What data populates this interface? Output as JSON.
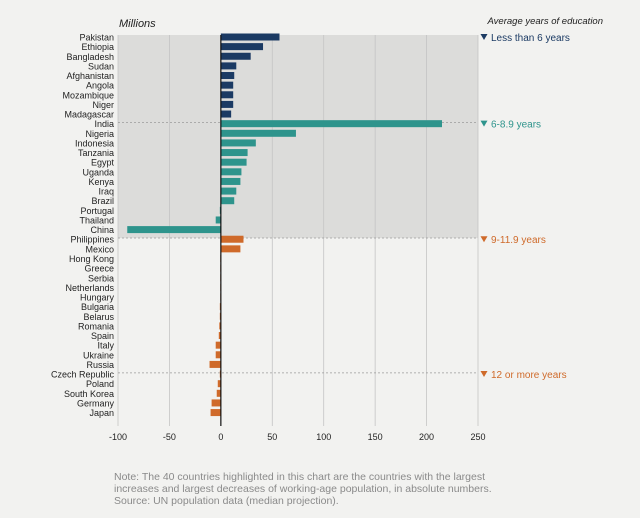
{
  "chart_data": {
    "type": "bar",
    "orientation": "horizontal",
    "unit_label": "Millions",
    "group_header": "Average years of education",
    "xlim": [
      -100,
      250
    ],
    "xticks": [
      -100,
      -50,
      0,
      50,
      100,
      150,
      200,
      250
    ],
    "grid": true,
    "categories": [
      "Pakistan",
      "Ethiopia",
      "Bangladesh",
      "Sudan",
      "Afghanistan",
      "Angola",
      "Mozambique",
      "Niger",
      "Madagascar",
      "India",
      "Nigeria",
      "Indonesia",
      "Tanzania",
      "Egypt",
      "Uganda",
      "Kenya",
      "Iraq",
      "Brazil",
      "Portugal",
      "Thailand",
      "China",
      "Philippines",
      "Mexico",
      "Hong Kong",
      "Greece",
      "Serbia",
      "Netherlands",
      "Hungary",
      "Bulgaria",
      "Belarus",
      "Romania",
      "Spain",
      "Italy",
      "Ukraine",
      "Russia",
      "Czech Republic",
      "Poland",
      "South Korea",
      "Germany",
      "Japan"
    ],
    "values": [
      57,
      41,
      29,
      15,
      13,
      12,
      12,
      12,
      10,
      215,
      73,
      34,
      26,
      25,
      20,
      19,
      15,
      13,
      -1,
      -5,
      -91,
      22,
      19,
      -0.5,
      -0.5,
      -0.5,
      -0.5,
      -0.5,
      -1,
      -1,
      -1.5,
      -2,
      -5,
      -5,
      -11,
      -1,
      -3,
      -4,
      -9,
      -10
    ],
    "groups": [
      {
        "label": "Less than 6 years",
        "start": 0,
        "end": 8,
        "color": "#1b3a63",
        "shaded": true
      },
      {
        "label": "6-8.9 years",
        "start": 9,
        "end": 20,
        "color": "#2e948c",
        "shaded": true
      },
      {
        "label": "9-11.9 years",
        "start": 21,
        "end": 34,
        "color": "#cf6a2a",
        "shaded": false
      },
      {
        "label": "12 or more years",
        "start": 35,
        "end": 39,
        "color": "#cf6a2a",
        "shaded": false
      }
    ]
  },
  "note": {
    "lines": [
      "Note: The 40 countries highlighted in this chart are the countries with the largest",
      "increases and largest decreases of working-age population, in absolute numbers.",
      "Source: UN population data (median projection)."
    ]
  }
}
